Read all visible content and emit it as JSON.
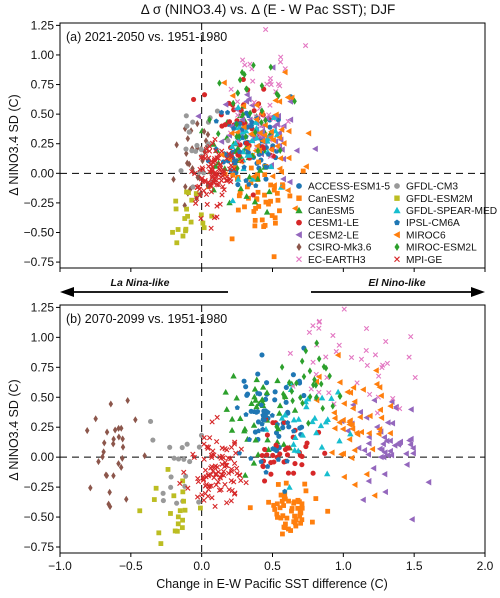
{
  "title": "Δ σ (NINO3.4) vs. Δ (E - W Pac SST); DJF",
  "ylabel": "Δ NINO3.4 SD (C)",
  "xlabel": "Change in E-W Pacific SST difference (C)",
  "arrows": {
    "left": "La Nina-like",
    "right": "El Nino-like"
  },
  "x_ticks": [
    "−1.0",
    "−0.5",
    "0.0",
    "0.5",
    "1.0",
    "1.5",
    "2.0"
  ],
  "y_ticks": [
    "−0.75",
    "−0.50",
    "−0.25",
    "0.00",
    "0.25",
    "0.50",
    "0.75",
    "1.00",
    "1.25"
  ],
  "legend": [
    {
      "name": "ACCESS-ESM1-5",
      "color": "#1f77b4",
      "marker": "circle"
    },
    {
      "name": "GFDL-CM3",
      "color": "#999999",
      "marker": "circle"
    },
    {
      "name": "CanESM2",
      "color": "#ff7f0e",
      "marker": "square"
    },
    {
      "name": "GFDL-ESM2M",
      "color": "#bcbd22",
      "marker": "square"
    },
    {
      "name": "CanESM5",
      "color": "#2ca02c",
      "marker": "triangle-up"
    },
    {
      "name": "GFDL-SPEAR-MED",
      "color": "#17becf",
      "marker": "triangle-up"
    },
    {
      "name": "CESM1-LE",
      "color": "#d62728",
      "marker": "circle"
    },
    {
      "name": "IPSL-CM6A",
      "color": "#1f77b4",
      "marker": "pentagon"
    },
    {
      "name": "CESM2-LE",
      "color": "#9467bd",
      "marker": "triangle-left"
    },
    {
      "name": "MIROC6",
      "color": "#ff7f0e",
      "marker": "triangle-left"
    },
    {
      "name": "CSIRO-Mk3.6",
      "color": "#8c564b",
      "marker": "diamond"
    },
    {
      "name": "MIROC-ESM2L",
      "color": "#2ca02c",
      "marker": "diamond"
    },
    {
      "name": "EC-EARTH3",
      "color": "#e377c2",
      "marker": "x"
    },
    {
      "name": "MPI-GE",
      "color": "#d62728",
      "marker": "x"
    }
  ],
  "chart_data": [
    {
      "type": "scatter",
      "panel": "(a) 2021-2050 vs. 1951-1980",
      "xlim": [
        -1.0,
        2.0
      ],
      "ylim": [
        -0.8,
        1.27
      ],
      "grid": false,
      "legend_placement": "lower-right",
      "reference_lines": {
        "x": 0.0,
        "y": 0.0
      },
      "series": [
        {
          "name": "ACCESS-ESM1-5",
          "center": [
            0.35,
            0.25
          ],
          "spread": [
            0.12,
            0.2
          ],
          "count": 40,
          "seed": 11
        },
        {
          "name": "CanESM2",
          "center": [
            0.42,
            -0.18
          ],
          "spread": [
            0.14,
            0.17
          ],
          "count": 50,
          "seed": 12
        },
        {
          "name": "CanESM5",
          "center": [
            0.28,
            0.15
          ],
          "spread": [
            0.12,
            0.2
          ],
          "count": 40,
          "seed": 13
        },
        {
          "name": "CESM1-LE",
          "center": [
            0.38,
            0.4
          ],
          "spread": [
            0.15,
            0.18
          ],
          "count": 40,
          "seed": 14
        },
        {
          "name": "CESM2-LE",
          "center": [
            0.45,
            0.38
          ],
          "spread": [
            0.15,
            0.2
          ],
          "count": 50,
          "seed": 15
        },
        {
          "name": "CSIRO-Mk3.6",
          "center": [
            -0.05,
            0.05
          ],
          "spread": [
            0.07,
            0.2
          ],
          "count": 30,
          "seed": 16
        },
        {
          "name": "EC-EARTH3",
          "center": [
            0.42,
            0.55
          ],
          "spread": [
            0.12,
            0.25
          ],
          "count": 40,
          "seed": 17
        },
        {
          "name": "GFDL-CM3",
          "center": [
            -0.05,
            0.15
          ],
          "spread": [
            0.09,
            0.22
          ],
          "count": 20,
          "seed": 18
        },
        {
          "name": "GFDL-ESM2M",
          "center": [
            -0.12,
            -0.3
          ],
          "spread": [
            0.07,
            0.12
          ],
          "count": 20,
          "seed": 19
        },
        {
          "name": "GFDL-SPEAR-MED",
          "center": [
            0.35,
            0.25
          ],
          "spread": [
            0.1,
            0.2
          ],
          "count": 30,
          "seed": 20
        },
        {
          "name": "IPSL-CM6A",
          "center": [
            0.3,
            0.2
          ],
          "spread": [
            0.12,
            0.18
          ],
          "count": 30,
          "seed": 21
        },
        {
          "name": "MIROC6",
          "center": [
            0.42,
            0.3
          ],
          "spread": [
            0.15,
            0.22
          ],
          "count": 50,
          "seed": 22
        },
        {
          "name": "MIROC-ESM2L",
          "center": [
            0.38,
            0.5
          ],
          "spread": [
            0.12,
            0.18
          ],
          "count": 30,
          "seed": 23
        },
        {
          "name": "MPI-GE",
          "center": [
            0.07,
            -0.02
          ],
          "spread": [
            0.07,
            0.15
          ],
          "count": 100,
          "seed": 24
        }
      ]
    },
    {
      "type": "scatter",
      "panel": "(b) 2070-2099 vs. 1951-1980",
      "xlim": [
        -1.0,
        2.0
      ],
      "ylim": [
        -0.8,
        1.27
      ],
      "grid": false,
      "reference_lines": {
        "x": 0.0,
        "y": 0.0
      },
      "series": [
        {
          "name": "ACCESS-ESM1-5",
          "center": [
            0.48,
            0.42
          ],
          "spread": [
            0.15,
            0.2
          ],
          "count": 40,
          "seed": 31
        },
        {
          "name": "CanESM2",
          "center": [
            0.62,
            -0.42
          ],
          "spread": [
            0.1,
            0.1
          ],
          "count": 50,
          "seed": 32
        },
        {
          "name": "CanESM5",
          "center": [
            0.4,
            0.3
          ],
          "spread": [
            0.12,
            0.2
          ],
          "count": 40,
          "seed": 33
        },
        {
          "name": "CESM1-LE",
          "center": [
            0.58,
            0.03
          ],
          "spread": [
            0.12,
            0.15
          ],
          "count": 40,
          "seed": 34
        },
        {
          "name": "CESM2-LE",
          "center": [
            1.3,
            0.13
          ],
          "spread": [
            0.15,
            0.22
          ],
          "count": 50,
          "seed": 35
        },
        {
          "name": "CSIRO-Mk3.6",
          "center": [
            -0.62,
            0.05
          ],
          "spread": [
            0.08,
            0.22
          ],
          "count": 30,
          "seed": 36
        },
        {
          "name": "EC-EARTH3",
          "center": [
            1.05,
            0.75
          ],
          "spread": [
            0.2,
            0.2
          ],
          "count": 40,
          "seed": 37
        },
        {
          "name": "GFDL-CM3",
          "center": [
            -0.2,
            -0.05
          ],
          "spread": [
            0.1,
            0.25
          ],
          "count": 20,
          "seed": 38
        },
        {
          "name": "GFDL-ESM2M",
          "center": [
            -0.2,
            -0.42
          ],
          "spread": [
            0.1,
            0.15
          ],
          "count": 20,
          "seed": 39
        },
        {
          "name": "GFDL-SPEAR-MED",
          "center": [
            0.75,
            0.28
          ],
          "spread": [
            0.12,
            0.2
          ],
          "count": 30,
          "seed": 40
        },
        {
          "name": "IPSL-CM6A",
          "center": [
            0.45,
            0.18
          ],
          "spread": [
            0.12,
            0.2
          ],
          "count": 30,
          "seed": 41
        },
        {
          "name": "MIROC6",
          "center": [
            1.05,
            0.35
          ],
          "spread": [
            0.15,
            0.25
          ],
          "count": 50,
          "seed": 42
        },
        {
          "name": "MIROC-ESM2L",
          "center": [
            0.72,
            0.62
          ],
          "spread": [
            0.12,
            0.2
          ],
          "count": 30,
          "seed": 43
        },
        {
          "name": "MPI-GE",
          "center": [
            0.1,
            -0.1
          ],
          "spread": [
            0.1,
            0.18
          ],
          "count": 100,
          "seed": 44
        }
      ]
    }
  ]
}
